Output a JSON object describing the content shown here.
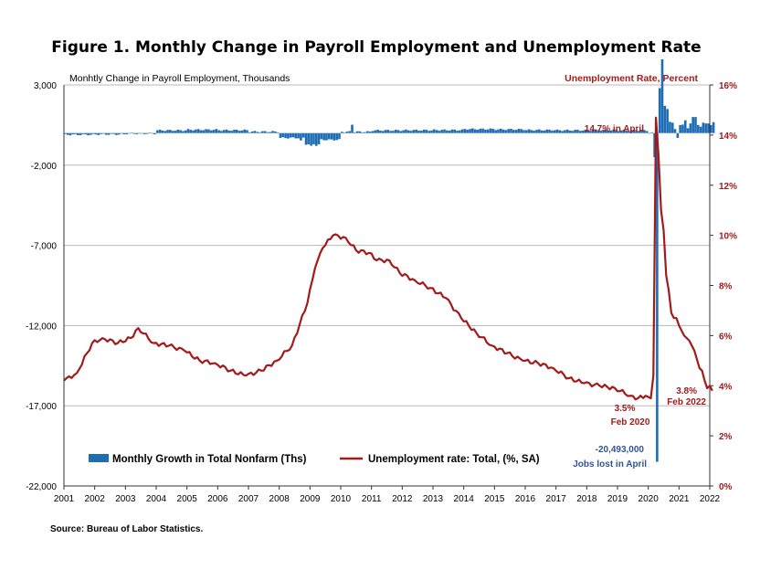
{
  "chart_data": {
    "type": "bar+line",
    "title": "Figure 1. Monthly Change in Payroll Employment and Unemployment Rate",
    "left_axis": {
      "label": "Monhtly Change in Payroll Employment, Thousands",
      "range": [
        -22000,
        3000
      ],
      "ticks": [
        3000,
        -2000,
        -7000,
        -12000,
        -17000,
        -22000
      ],
      "tick_labels": [
        "3,000",
        "-2,000",
        "-7,000",
        "-12,000",
        "-17,000",
        "-22,000"
      ]
    },
    "right_axis": {
      "label": "Unemployment Rate, Percent",
      "range": [
        0,
        16
      ],
      "ticks": [
        0,
        2,
        4,
        6,
        8,
        10,
        12,
        14,
        16
      ],
      "tick_labels": [
        "0%",
        "2%",
        "4%",
        "6%",
        "8%",
        "10%",
        "12%",
        "14%",
        "16%"
      ]
    },
    "x_axis": {
      "range": [
        2001,
        2022
      ],
      "tick_labels": [
        "2001",
        "2002",
        "2003",
        "2004",
        "2005",
        "2006",
        "2007",
        "2008",
        "2009",
        "2010",
        "2011",
        "2012",
        "2013",
        "2014",
        "2015",
        "2016",
        "2017",
        "2018",
        "2019",
        "2020",
        "2021",
        "2022"
      ]
    },
    "grid": true,
    "legend": {
      "placement": "bottom-left",
      "items": [
        {
          "label": "Monthly Growth in Total Nonfarm (Ths)",
          "color": "#1f6db5",
          "kind": "bar"
        },
        {
          "label": "Unemployment rate: Total, (%, SA)",
          "color": "#a31a1a",
          "kind": "line"
        }
      ]
    },
    "payroll_series": {
      "name": "Monthly Growth in Total Nonfarm (Ths)",
      "color": "#1f6db5",
      "start": "2001-01",
      "annual_typical": [
        -100,
        -80,
        -30,
        170,
        210,
        180,
        90,
        -300,
        -420,
        80,
        170,
        180,
        190,
        250,
        230,
        190,
        175,
        190,
        170,
        0,
        550,
        500
      ],
      "specials": [
        {
          "date": "2008-09",
          "value": -460
        },
        {
          "date": "2008-11",
          "value": -730
        },
        {
          "date": "2008-12",
          "value": -700
        },
        {
          "date": "2009-01",
          "value": -790
        },
        {
          "date": "2009-02",
          "value": -700
        },
        {
          "date": "2009-03",
          "value": -800
        },
        {
          "date": "2009-04",
          "value": -700
        },
        {
          "date": "2010-05",
          "value": 520
        },
        {
          "date": "2020-03",
          "value": -1500
        },
        {
          "date": "2020-04",
          "value": -20493
        },
        {
          "date": "2020-05",
          "value": 2800
        },
        {
          "date": "2020-06",
          "value": 4600
        },
        {
          "date": "2020-07",
          "value": 1700
        },
        {
          "date": "2020-08",
          "value": 1500
        },
        {
          "date": "2020-09",
          "value": 700
        },
        {
          "date": "2020-10",
          "value": 650
        },
        {
          "date": "2020-11",
          "value": 250
        },
        {
          "date": "2020-12",
          "value": -300
        },
        {
          "date": "2021-01",
          "value": 500
        },
        {
          "date": "2021-02",
          "value": 530
        },
        {
          "date": "2021-03",
          "value": 800
        },
        {
          "date": "2021-04",
          "value": 300
        },
        {
          "date": "2021-05",
          "value": 600
        },
        {
          "date": "2021-06",
          "value": 1000
        },
        {
          "date": "2021-07",
          "value": 1000
        },
        {
          "date": "2021-08",
          "value": 500
        },
        {
          "date": "2021-09",
          "value": 400
        },
        {
          "date": "2021-10",
          "value": 650
        },
        {
          "date": "2021-11",
          "value": 600
        },
        {
          "date": "2021-12",
          "value": 600
        },
        {
          "date": "2022-01",
          "value": 500
        },
        {
          "date": "2022-02",
          "value": 680
        }
      ]
    },
    "unemployment_series": {
      "name": "Unemployment rate: Total, (%, SA)",
      "color": "#a31a1a",
      "points": [
        [
          "2001-01",
          4.2
        ],
        [
          "2001-06",
          4.5
        ],
        [
          "2001-10",
          5.3
        ],
        [
          "2001-12",
          5.7
        ],
        [
          "2002-04",
          5.9
        ],
        [
          "2002-10",
          5.7
        ],
        [
          "2003-03",
          5.9
        ],
        [
          "2003-06",
          6.3
        ],
        [
          "2003-12",
          5.7
        ],
        [
          "2004-06",
          5.6
        ],
        [
          "2004-12",
          5.4
        ],
        [
          "2005-06",
          5.0
        ],
        [
          "2005-12",
          4.9
        ],
        [
          "2006-06",
          4.6
        ],
        [
          "2006-12",
          4.4
        ],
        [
          "2007-06",
          4.6
        ],
        [
          "2007-12",
          5.0
        ],
        [
          "2008-06",
          5.6
        ],
        [
          "2008-12",
          7.3
        ],
        [
          "2009-03",
          8.7
        ],
        [
          "2009-06",
          9.5
        ],
        [
          "2009-10",
          10.0
        ],
        [
          "2010-03",
          9.9
        ],
        [
          "2010-07",
          9.4
        ],
        [
          "2010-12",
          9.3
        ],
        [
          "2011-03",
          9.0
        ],
        [
          "2011-08",
          9.0
        ],
        [
          "2011-12",
          8.5
        ],
        [
          "2012-06",
          8.2
        ],
        [
          "2012-12",
          7.9
        ],
        [
          "2013-06",
          7.5
        ],
        [
          "2013-12",
          6.7
        ],
        [
          "2014-06",
          6.1
        ],
        [
          "2014-12",
          5.6
        ],
        [
          "2015-06",
          5.3
        ],
        [
          "2015-12",
          5.0
        ],
        [
          "2016-06",
          4.9
        ],
        [
          "2016-12",
          4.7
        ],
        [
          "2017-06",
          4.3
        ],
        [
          "2017-12",
          4.1
        ],
        [
          "2018-06",
          4.0
        ],
        [
          "2018-12",
          3.9
        ],
        [
          "2019-06",
          3.6
        ],
        [
          "2019-09",
          3.5
        ],
        [
          "2019-12",
          3.6
        ],
        [
          "2020-02",
          3.5
        ],
        [
          "2020-03",
          4.4
        ],
        [
          "2020-04",
          14.7
        ],
        [
          "2020-05",
          13.2
        ],
        [
          "2020-06",
          11.0
        ],
        [
          "2020-07",
          10.2
        ],
        [
          "2020-08",
          8.4
        ],
        [
          "2020-09",
          7.8
        ],
        [
          "2020-10",
          6.9
        ],
        [
          "2020-11",
          6.7
        ],
        [
          "2020-12",
          6.7
        ],
        [
          "2021-01",
          6.4
        ],
        [
          "2021-03",
          6.0
        ],
        [
          "2021-05",
          5.8
        ],
        [
          "2021-07",
          5.4
        ],
        [
          "2021-09",
          4.7
        ],
        [
          "2021-10",
          4.6
        ],
        [
          "2021-11",
          4.2
        ],
        [
          "2021-12",
          3.9
        ],
        [
          "2022-01",
          4.0
        ],
        [
          "2022-02",
          3.8
        ]
      ]
    },
    "annotations": {
      "peak": "14.7% in April",
      "pre_covid_value": "3.5%",
      "pre_covid_date": "Feb 2020",
      "latest_value": "3.8%",
      "latest_date": "Feb 2022",
      "jobs_lost_value": "-20,493,000",
      "jobs_lost_label": "Jobs lost in April"
    },
    "source": "Source: Bureau of Labor Statistics."
  }
}
